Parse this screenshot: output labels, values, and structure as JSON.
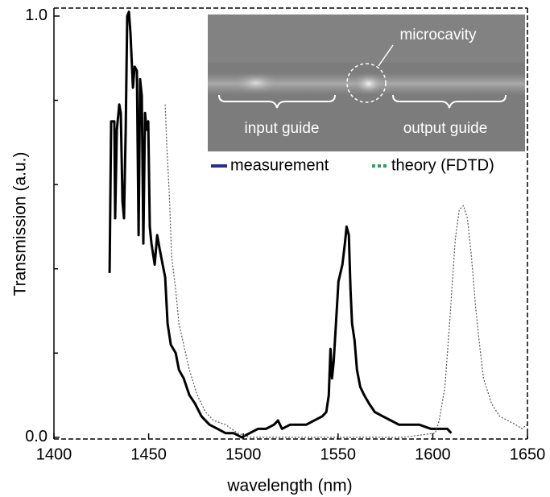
{
  "chart_data": {
    "type": "line",
    "x_label": "wavelength (nm)",
    "y_label": "Transmission  (a.u.)",
    "xlim": [
      1400,
      1650
    ],
    "ylim": [
      -0.004,
      1.019
    ],
    "xticks": [
      1400,
      1450,
      1500,
      1550,
      1600,
      1650
    ],
    "yticks": [
      {
        "value": 0,
        "label": "0.0"
      },
      {
        "value": 1,
        "label": "1.0"
      }
    ],
    "yminor_ticks": [
      0.2,
      0.4,
      0.6,
      0.8
    ],
    "series": [
      {
        "name": "measurement",
        "color": "#000000",
        "legend_color": "#2b2b8f",
        "style": "solid",
        "x": [
          1429.4,
          1430.2,
          1431.9,
          1432.3,
          1433.2,
          1434.5,
          1435.3,
          1436.2,
          1437.0,
          1437.9,
          1438.7,
          1439.6,
          1440.4,
          1441.7,
          1442.6,
          1443.8,
          1444.7,
          1445.5,
          1446.4,
          1447.2,
          1448.1,
          1448.9,
          1449.8,
          1450.6,
          1451.5,
          1453.2,
          1454.5,
          1455.7,
          1457.4,
          1458.7,
          1460.0,
          1461.7,
          1464.3,
          1466.0,
          1468.5,
          1471.5,
          1474.5,
          1477.9,
          1482.1,
          1486.4,
          1490.6,
          1494.9,
          1499.1,
          1503.4,
          1507.7,
          1511.9,
          1516.2,
          1518.3,
          1520.4,
          1524.7,
          1528.9,
          1533.2,
          1537.4,
          1541.7,
          1543.8,
          1545.1,
          1546.0,
          1546.8,
          1547.7,
          1548.9,
          1550.2,
          1552.3,
          1553.6,
          1554.5,
          1555.7,
          1556.6,
          1557.4,
          1558.7,
          1560.0,
          1561.7,
          1563.8,
          1566.4,
          1569.4,
          1573.6,
          1577.9,
          1582.1,
          1586.4,
          1592.8,
          1599.1,
          1604.7,
          1607.7,
          1609.8
        ],
        "values": [
          0.39,
          0.75,
          0.75,
          0.52,
          0.73,
          0.79,
          0.77,
          0.56,
          0.52,
          0.73,
          1.0,
          1.01,
          0.96,
          0.83,
          0.88,
          0.87,
          0.48,
          0.85,
          0.81,
          0.46,
          0.77,
          0.73,
          0.75,
          0.5,
          0.46,
          0.41,
          0.48,
          0.45,
          0.41,
          0.38,
          0.27,
          0.22,
          0.2,
          0.16,
          0.14,
          0.1,
          0.08,
          0.05,
          0.03,
          0.02,
          0.01,
          0.01,
          0.0,
          0.01,
          0.02,
          0.02,
          0.03,
          0.04,
          0.02,
          0.03,
          0.03,
          0.03,
          0.04,
          0.05,
          0.06,
          0.1,
          0.21,
          0.14,
          0.18,
          0.27,
          0.37,
          0.41,
          0.46,
          0.5,
          0.48,
          0.35,
          0.27,
          0.23,
          0.16,
          0.12,
          0.1,
          0.08,
          0.06,
          0.05,
          0.04,
          0.03,
          0.03,
          0.03,
          0.02,
          0.02,
          0.02,
          0.01
        ]
      },
      {
        "name": "theory (FDTD)",
        "color": "#555555",
        "legend_color": "#2e9e5e",
        "style": "dotted",
        "x": [
          1458.7,
          1459.6,
          1460.9,
          1462.1,
          1464.3,
          1466.0,
          1468.5,
          1471.5,
          1475.7,
          1480.0,
          1484.3,
          1490.6,
          1497.0,
          1503.4,
          1511.9,
          1541.7,
          1584.3,
          1601.3,
          1603.4,
          1606.4,
          1608.9,
          1611.9,
          1614.0,
          1616.2,
          1618.3,
          1620.4,
          1622.6,
          1624.7,
          1626.8,
          1631.1,
          1635.3,
          1639.6,
          1643.8,
          1647.2,
          1649.4
        ],
        "values": [
          0.79,
          0.69,
          0.58,
          0.43,
          0.35,
          0.27,
          0.22,
          0.16,
          0.1,
          0.06,
          0.04,
          0.03,
          0.01,
          0.0,
          0.0,
          0.0,
          0.0,
          0.01,
          0.04,
          0.12,
          0.27,
          0.47,
          0.54,
          0.55,
          0.52,
          0.43,
          0.31,
          0.22,
          0.14,
          0.08,
          0.05,
          0.04,
          0.03,
          0.02,
          0.03
        ]
      }
    ],
    "inset": {
      "label": "microcavity",
      "left_label": "input guide",
      "right_label": "output guide"
    }
  }
}
